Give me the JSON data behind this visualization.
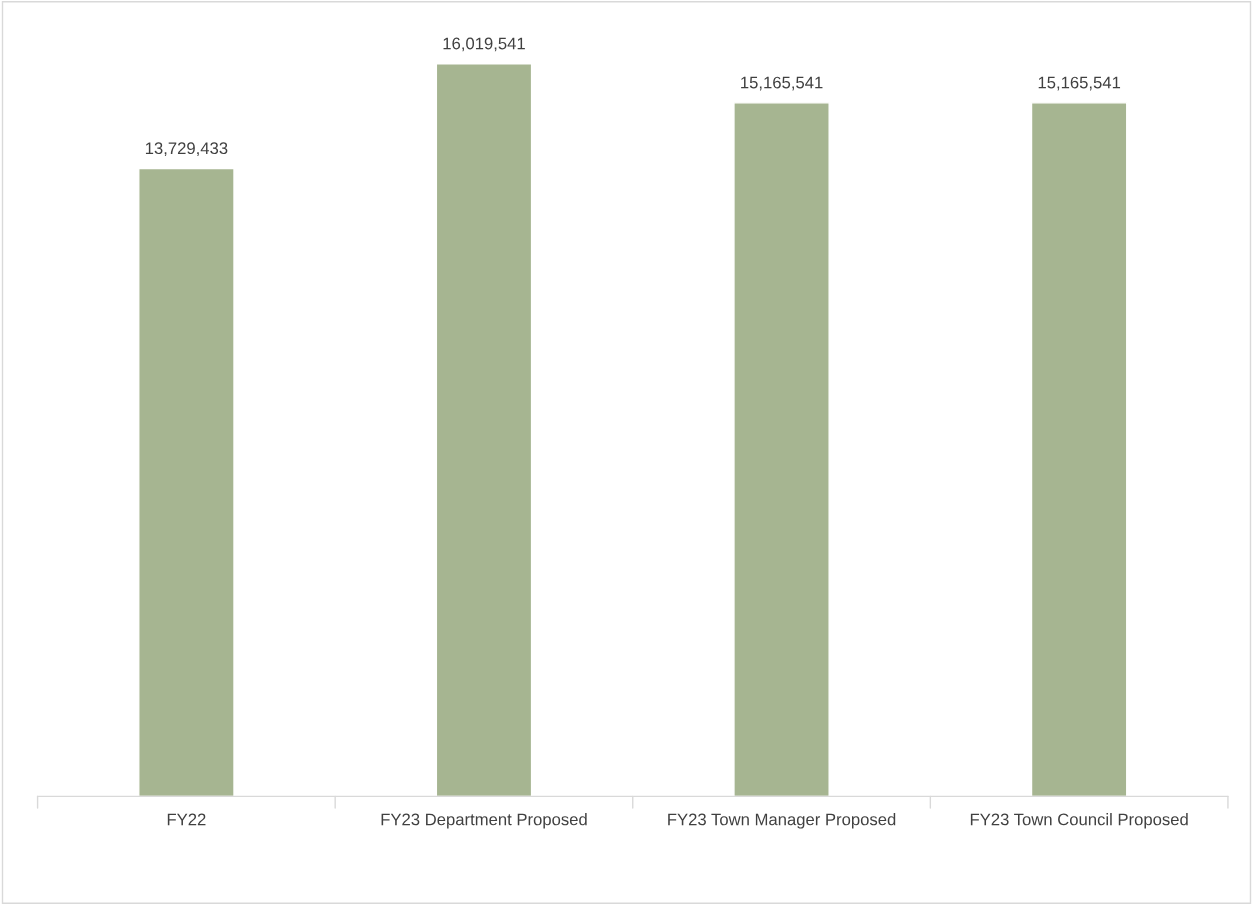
{
  "chart_data": {
    "type": "bar",
    "categories": [
      "FY22",
      "FY23 Department Proposed",
      "FY23 Town Manager Proposed",
      "FY23 Town Council Proposed"
    ],
    "values": [
      13729433,
      16019541,
      15165541,
      15165541
    ],
    "color": "#a6b591",
    "value_labels": [
      "13,729,433",
      "16,019,541",
      "15,165,541",
      "15,165,541"
    ],
    "tick_labels": "x",
    "grid": false,
    "legend": false
  }
}
